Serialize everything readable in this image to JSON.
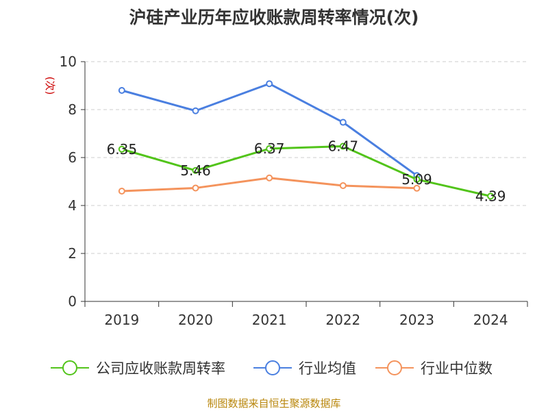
{
  "chart_data": {
    "type": "line",
    "title": "沪硅产业历年应收账款周转率情况(次)",
    "ylabel": "(次)",
    "xlabel": "",
    "categories": [
      "2019",
      "2020",
      "2021",
      "2022",
      "2023",
      "2024"
    ],
    "ylim": [
      0,
      10
    ],
    "yticks": [
      0,
      2,
      4,
      6,
      8,
      10
    ],
    "grid": true,
    "legend_position": "bottom",
    "series": [
      {
        "name": "公司应收账款周转率",
        "color": "#52c41a",
        "values": [
          6.35,
          5.46,
          6.37,
          6.47,
          5.09,
          4.39
        ],
        "labels": [
          "6.35",
          "5.46",
          "6.37",
          "6.47",
          "5.09",
          "4.39"
        ]
      },
      {
        "name": "行业均值",
        "color": "#4a7fe0",
        "values": [
          8.8,
          7.95,
          9.08,
          7.47,
          5.25,
          null
        ]
      },
      {
        "name": "行业中位数",
        "color": "#f4935c",
        "values": [
          4.6,
          4.73,
          5.15,
          4.83,
          4.72,
          null
        ]
      }
    ],
    "source": "制图数据来自恒生聚源数据库"
  }
}
